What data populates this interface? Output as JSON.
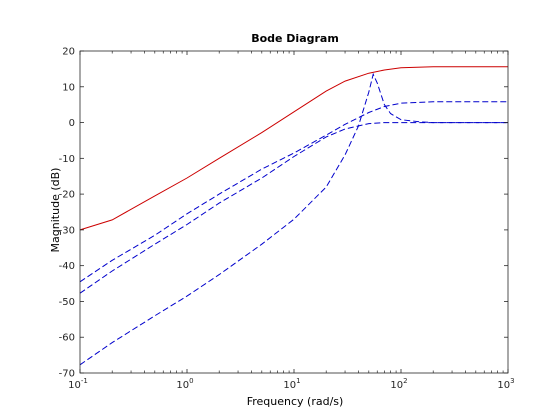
{
  "chart_data": {
    "type": "line",
    "title": "Bode Diagram",
    "xlabel": "Frequency  (rad/s)",
    "ylabel": "Magnitude (dB)",
    "xscale": "log",
    "xlim": [
      0.1,
      1000
    ],
    "ylim": [
      -70,
      20
    ],
    "grid": false,
    "box": true,
    "x_ticks": [
      {
        "base": "10",
        "exp": "-1"
      },
      {
        "base": "10",
        "exp": "0"
      },
      {
        "base": "10",
        "exp": "1"
      },
      {
        "base": "10",
        "exp": "2"
      },
      {
        "base": "10",
        "exp": "3"
      }
    ],
    "y_ticks": [
      "20",
      "10",
      "0",
      "-10",
      "-20",
      "-30",
      "-40",
      "-50",
      "-60",
      "-70"
    ],
    "series": [
      {
        "color": "#cc0000",
        "style": "solid",
        "x": [
          0.1,
          0.2,
          0.5,
          1,
          2,
          5,
          10,
          20,
          30,
          50,
          70,
          100,
          200,
          500,
          1000
        ],
        "y": [
          -30,
          -27.2,
          -20.5,
          -15.5,
          -10,
          -2.8,
          3,
          8.8,
          11.6,
          13.8,
          14.7,
          15.3,
          15.6,
          15.6,
          15.6
        ]
      },
      {
        "color": "#0000cc",
        "style": "dashed",
        "x": [
          0.1,
          0.2,
          0.5,
          1,
          2,
          5,
          10,
          20,
          30,
          50,
          70,
          100,
          200,
          500,
          1000
        ],
        "y": [
          -44.5,
          -38.5,
          -31.5,
          -25.5,
          -20,
          -13,
          -8.5,
          -3.5,
          -0.5,
          2.8,
          4.5,
          5.4,
          5.8,
          5.8,
          5.8
        ]
      },
      {
        "color": "#0000cc",
        "style": "dashed",
        "x": [
          0.1,
          0.2,
          0.5,
          1,
          2,
          5,
          10,
          20,
          30,
          50,
          70,
          100,
          200,
          500,
          1000
        ],
        "y": [
          -47.7,
          -41.5,
          -34,
          -28.5,
          -22.5,
          -15.5,
          -9.5,
          -4,
          -1.8,
          -0.3,
          0,
          0,
          0,
          0,
          0
        ]
      },
      {
        "color": "#0000cc",
        "style": "dashed",
        "x": [
          0.1,
          0.2,
          0.5,
          1,
          2,
          5,
          10,
          20,
          30,
          40,
          50,
          55,
          60,
          70,
          80,
          100,
          150,
          200,
          300,
          1000
        ],
        "y": [
          -67.7,
          -61.5,
          -54,
          -48.5,
          -42.5,
          -34,
          -27,
          -18,
          -9,
          -1,
          8.5,
          13.5,
          11,
          5,
          2.5,
          0.8,
          0.2,
          0,
          0,
          0
        ]
      }
    ]
  }
}
